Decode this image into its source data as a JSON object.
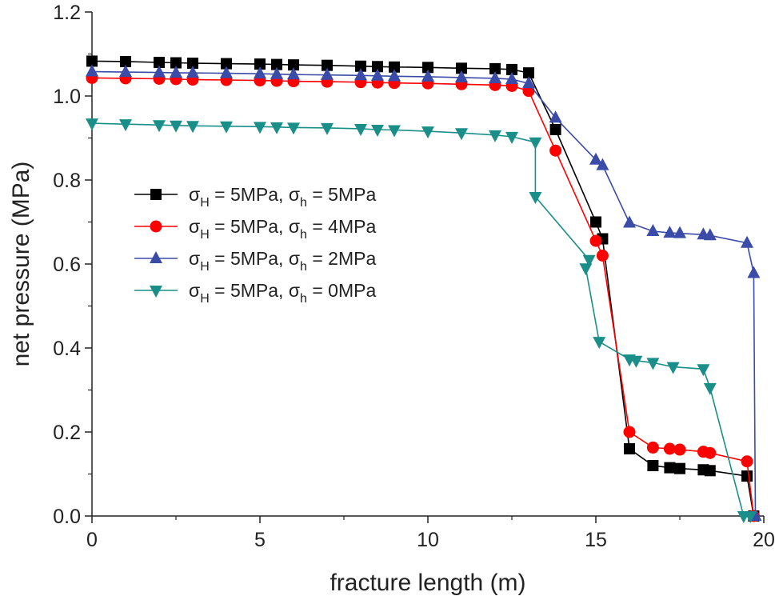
{
  "chart_data": {
    "type": "line",
    "title": "",
    "xlabel": "fracture length (m)",
    "ylabel": "net pressure (MPa)",
    "xlim": [
      0,
      20
    ],
    "ylim": [
      0,
      1.2
    ],
    "xticks": [
      0,
      5,
      10,
      15,
      20
    ],
    "xtick_labels": [
      "0",
      "5",
      "10",
      "15",
      "20"
    ],
    "yticks": [
      0.0,
      0.2,
      0.4,
      0.6,
      0.8,
      1.0,
      1.2
    ],
    "ytick_labels": [
      "0.0",
      "0.2",
      "0.4",
      "0.6",
      "0.8",
      "1.0",
      "1.2"
    ],
    "grid": false,
    "legend_position": "center-left",
    "series": [
      {
        "name": "σH = 5MPa, σh = 5MPa",
        "label": {
          "sym1": "σ",
          "sub1": "H",
          "mid": " = 5MPa, ",
          "sym2": "σ",
          "sub2": "h",
          "tail": " = 5MPa"
        },
        "color": "#000000",
        "marker": "square",
        "x": [
          0,
          1,
          2,
          2.5,
          3,
          4,
          5,
          5.5,
          6,
          7,
          8,
          8.5,
          9,
          10,
          11,
          12,
          12.5,
          13,
          13.8,
          15,
          15.2,
          16,
          16.7,
          17.2,
          17.5,
          18.2,
          18.4,
          19.5,
          19.7
        ],
        "y": [
          1.083,
          1.082,
          1.08,
          1.079,
          1.078,
          1.077,
          1.076,
          1.075,
          1.074,
          1.073,
          1.071,
          1.07,
          1.069,
          1.068,
          1.066,
          1.065,
          1.063,
          1.055,
          0.92,
          0.7,
          0.66,
          0.16,
          0.12,
          0.115,
          0.113,
          0.11,
          0.108,
          0.095,
          0.0
        ]
      },
      {
        "name": "σH = 5MPa, σh = 4MPa",
        "label": {
          "sym1": "σ",
          "sub1": "H",
          "mid": " = 5MPa, ",
          "sym2": "σ",
          "sub2": "h",
          "tail": " = 4MPa"
        },
        "color": "#ff0000",
        "marker": "circle",
        "x": [
          0,
          1,
          2,
          2.5,
          3,
          4,
          5,
          5.5,
          6,
          7,
          8,
          8.5,
          9,
          10,
          11,
          12,
          12.5,
          13,
          13.8,
          15,
          15.2,
          16,
          16.7,
          17.2,
          17.5,
          18.2,
          18.4,
          19.5,
          19.7
        ],
        "y": [
          1.043,
          1.042,
          1.041,
          1.04,
          1.039,
          1.038,
          1.037,
          1.036,
          1.035,
          1.034,
          1.033,
          1.032,
          1.031,
          1.03,
          1.028,
          1.026,
          1.024,
          1.012,
          0.87,
          0.655,
          0.62,
          0.2,
          0.163,
          0.16,
          0.158,
          0.153,
          0.15,
          0.13,
          0.0
        ]
      },
      {
        "name": "σH = 5MPa, σh = 2MPa",
        "label": {
          "sym1": "σ",
          "sub1": "H",
          "mid": " = 5MPa, ",
          "sym2": "σ",
          "sub2": "h",
          "tail": " = 2MPa"
        },
        "color": "#3b4ba8",
        "marker": "triangle-up",
        "x": [
          0,
          1,
          2,
          2.5,
          3,
          4,
          5,
          5.5,
          6,
          7,
          8,
          8.5,
          9,
          10,
          11,
          12,
          12.5,
          13,
          13.8,
          15,
          15.2,
          16,
          16.7,
          17.2,
          17.5,
          18.2,
          18.4,
          19.5,
          19.7,
          19.75
        ],
        "y": [
          1.058,
          1.057,
          1.056,
          1.055,
          1.055,
          1.054,
          1.053,
          1.052,
          1.051,
          1.05,
          1.049,
          1.048,
          1.047,
          1.046,
          1.044,
          1.042,
          1.04,
          1.03,
          0.948,
          0.848,
          0.835,
          0.698,
          0.678,
          0.674,
          0.673,
          0.67,
          0.668,
          0.65,
          0.578,
          0.0
        ]
      },
      {
        "name": "σH = 5MPa, σh = 0MPa",
        "label": {
          "sym1": "σ",
          "sub1": "H",
          "mid": " = 5MPa, ",
          "sym2": "σ",
          "sub2": "h",
          "tail": " = 0MPa"
        },
        "color": "#1a8f8a",
        "marker": "triangle-down",
        "x": [
          0,
          1,
          2,
          2.5,
          3,
          4,
          5,
          5.5,
          6,
          7,
          8,
          8.5,
          9,
          10,
          11,
          12,
          12.5,
          13.2,
          13.2,
          14.8,
          14.7,
          15.1,
          16,
          16.2,
          16.7,
          17.3,
          18.2,
          18.4,
          19.4,
          19.6
        ],
        "y": [
          0.935,
          0.933,
          0.931,
          0.93,
          0.929,
          0.928,
          0.927,
          0.926,
          0.925,
          0.924,
          0.922,
          0.92,
          0.919,
          0.916,
          0.912,
          0.907,
          0.903,
          0.89,
          0.76,
          0.61,
          0.59,
          0.415,
          0.373,
          0.37,
          0.365,
          0.355,
          0.35,
          0.305,
          0.0,
          0.0
        ]
      }
    ]
  }
}
